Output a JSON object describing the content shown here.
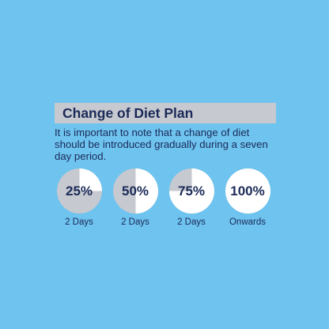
{
  "colors": {
    "background": "#6ec3ef",
    "title_bar": "#c6c9cf",
    "text": "#1b2a58",
    "pie_fill": "#ffffff",
    "pie_empty": "#c6c9cf"
  },
  "header": {
    "title": "Change of Diet Plan"
  },
  "description": "It is important to note that a change of diet should be introduced gradually during a seven day period.",
  "stages": [
    {
      "percent_label": "25%",
      "fraction": 0.25,
      "duration": "2 Days"
    },
    {
      "percent_label": "50%",
      "fraction": 0.5,
      "duration": "2 Days"
    },
    {
      "percent_label": "75%",
      "fraction": 0.75,
      "duration": "2 Days"
    },
    {
      "percent_label": "100%",
      "fraction": 1.0,
      "duration": "Onwards"
    }
  ]
}
